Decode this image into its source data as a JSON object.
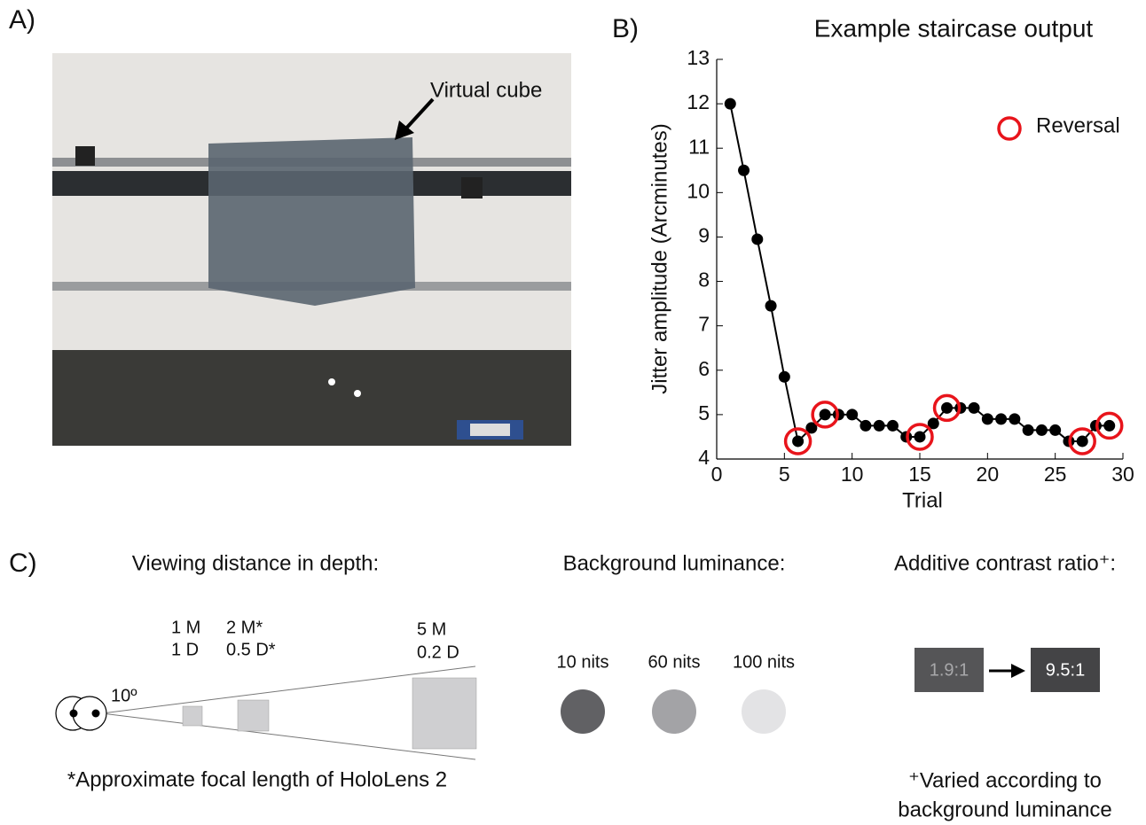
{
  "panel_a": {
    "label": "A)",
    "annotation": "Virtual cube"
  },
  "chart_data": {
    "type": "line",
    "panel_label": "B)",
    "title": "Example staircase output",
    "x_label": "Trial",
    "y_label": "Jitter amplitude (Arcminutes)",
    "x": [
      1,
      2,
      3,
      4,
      5,
      6,
      7,
      8,
      9,
      10,
      11,
      12,
      13,
      14,
      15,
      16,
      17,
      18,
      19,
      20,
      21,
      22,
      23,
      24,
      25,
      26,
      27,
      28,
      29
    ],
    "series": [
      {
        "name": null,
        "color": "#000000",
        "values": [
          12.0,
          10.5,
          8.95,
          7.45,
          5.85,
          4.4,
          4.7,
          5.0,
          5.0,
          5.0,
          4.75,
          4.75,
          4.75,
          4.5,
          4.5,
          4.8,
          5.15,
          5.15,
          5.15,
          4.9,
          4.9,
          4.9,
          4.65,
          4.65,
          4.65,
          4.4,
          4.4,
          4.75,
          4.75
        ]
      },
      {
        "name": "Reversal",
        "color": "#e8141b",
        "values": [
          null,
          null,
          null,
          null,
          null,
          4.4,
          null,
          5.0,
          null,
          null,
          null,
          null,
          null,
          null,
          4.5,
          null,
          5.15,
          null,
          null,
          null,
          null,
          null,
          null,
          null,
          null,
          null,
          4.4,
          null,
          4.75
        ]
      }
    ],
    "xlim": [
      0,
      30
    ],
    "xticks": [
      0,
      5,
      10,
      15,
      20,
      25,
      30
    ],
    "ylim": [
      4,
      13
    ],
    "yticks": [
      4,
      5,
      6,
      7,
      8,
      9,
      10,
      11,
      12,
      13
    ],
    "legend_position": "upper right"
  },
  "panel_c": {
    "label": "C)",
    "depth": {
      "heading": "Viewing distance in depth:",
      "angle": "10º",
      "distances": [
        [
          "1 M",
          "1 D"
        ],
        [
          "2 M*",
          "0.5 D*"
        ],
        [
          "5 M",
          "0.2 D"
        ]
      ],
      "footnote": "*Approximate focal length of HoloLens 2"
    },
    "luminance": {
      "heading": "Background luminance:",
      "levels": [
        "10 nits",
        "60 nits",
        "100 nits"
      ]
    },
    "contrast": {
      "heading": "Additive contrast ratio⁺:",
      "from": "1.9:1",
      "to": "9.5:1",
      "footnote": [
        "⁺Varied according to",
        "background luminance"
      ]
    }
  }
}
